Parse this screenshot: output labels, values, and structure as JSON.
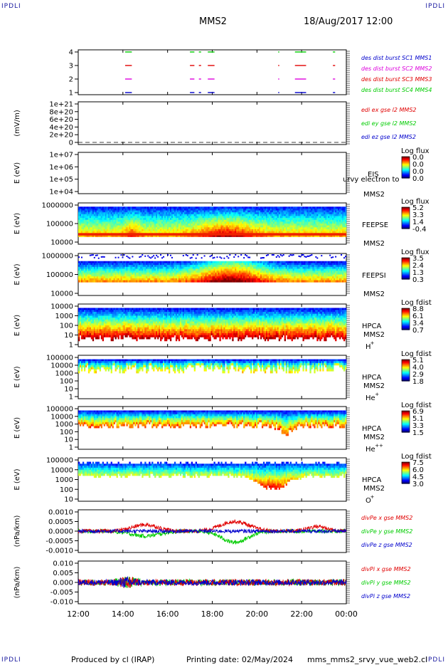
{
  "corner_label": "IPDLI",
  "header": {
    "spacecraft": "MMS2",
    "date_time": "18/Aug/2017 12:00"
  },
  "footer": {
    "produced_by": "Produced by cl (IRAP)",
    "printing_date": "Printing date: 02/May/2024",
    "filename": "mms_mms2_srvy_vue_web2.cl"
  },
  "colors": {
    "red": "#e00000",
    "green": "#00cc00",
    "blue": "#0000cc",
    "magenta": "#dd00dd"
  },
  "chart_data": {
    "type": "stacked-panels",
    "x_axis": {
      "ticks": [
        "12:00",
        "14:00",
        "16:00",
        "18:00",
        "20:00",
        "22:00",
        "00:00"
      ],
      "range": [
        "12:00",
        "00:00"
      ]
    },
    "panels": [
      {
        "id": "burst",
        "type": "timeline",
        "ylim": [
          0.5,
          4.5
        ],
        "yticks": [
          "4",
          "3",
          "2",
          "1"
        ],
        "legend": [
          {
            "text": "des dist burst SC1 MMS1",
            "color": "#0000cc"
          },
          {
            "text": "des dist burst SC2 MMS2",
            "color": "#dd00dd"
          },
          {
            "text": "des dist burst SC3 MMS3",
            "color": "#e00000"
          },
          {
            "text": "des dist burst SC4 MMS4",
            "color": "#00cc00"
          }
        ],
        "intervals_hours": [
          [
            14.1,
            14.4
          ],
          [
            17.0,
            17.2
          ],
          [
            17.4,
            17.5
          ],
          [
            17.8,
            18.1
          ],
          [
            20.95,
            21.0
          ],
          [
            21.7,
            22.2
          ],
          [
            23.4,
            23.5
          ]
        ]
      },
      {
        "id": "edi",
        "type": "line",
        "ylabel": "(mV/m)",
        "yticks": [
          "1e+21",
          "8e+20",
          "6e+20",
          "4e+20",
          "2e+20",
          "0"
        ],
        "legend": [
          {
            "text": "edi ex gse l2 MMS2",
            "color": "#e00000"
          },
          {
            "text": "edi ey gse l2 MMS2",
            "color": "#00cc00"
          },
          {
            "text": "edi ez gse l2 MMS2",
            "color": "#0000cc"
          }
        ]
      },
      {
        "id": "eis",
        "type": "heatmap",
        "ylabel": "E (eV)",
        "yticks": [
          "1e+07",
          "1e+06",
          "1e+05",
          "1e+04"
        ],
        "instrument": "EIS",
        "extra_label": "urvy electron to",
        "spacecraft": "MMS2",
        "cbar_title": "Log flux",
        "cbar_ticks": [
          "0.0",
          "0.0",
          "0.0",
          "0.0"
        ]
      },
      {
        "id": "feepse",
        "type": "heatmap",
        "ylabel": "E (eV)",
        "yticks": [
          "1000000",
          "100000",
          "10000"
        ],
        "instrument": "FEEPSE",
        "spacecraft": "MMS2",
        "cbar_title": "Log flux",
        "cbar_ticks": [
          "5.2",
          "3.3",
          "1.4",
          "-0.4"
        ]
      },
      {
        "id": "feepsi",
        "type": "heatmap",
        "ylabel": "E (eV)",
        "yticks": [
          "1000000",
          "100000",
          "10000"
        ],
        "instrument": "FEEPSI",
        "spacecraft": "MMS2",
        "cbar_title": "Log flux",
        "cbar_ticks": [
          "3.5",
          "2.4",
          "1.3",
          "0.3"
        ]
      },
      {
        "id": "hpca_h",
        "type": "heatmap",
        "ylabel": "E (eV)",
        "yticks": [
          "10000",
          "1000",
          "100",
          "10",
          "1"
        ],
        "instrument": "HPCA",
        "spacecraft": "MMS2",
        "species": "H",
        "species_charge": "+",
        "cbar_title": "Log fdist",
        "cbar_ticks": [
          "8.8",
          "6.1",
          "3.4",
          "0.7"
        ]
      },
      {
        "id": "hpca_he",
        "type": "heatmap",
        "ylabel": "E (eV)",
        "yticks": [
          "100000",
          "10000",
          "1000",
          "100",
          "10",
          "1"
        ],
        "instrument": "HPCA",
        "spacecraft": "MMS2",
        "species": "He",
        "species_charge": "+",
        "cbar_title": "Log fdist",
        "cbar_ticks": [
          "5.1",
          "4.0",
          "2.9",
          "1.8"
        ]
      },
      {
        "id": "hpca_hepp",
        "type": "heatmap",
        "ylabel": "E (eV)",
        "yticks": [
          "100000",
          "10000",
          "1000",
          "100",
          "10",
          "1"
        ],
        "instrument": "HPCA",
        "spacecraft": "MMS2",
        "species": "He",
        "species_charge": "++",
        "cbar_title": "Log fdist",
        "cbar_ticks": [
          "6.9",
          "5.1",
          "3.3",
          "1.5"
        ]
      },
      {
        "id": "hpca_o",
        "type": "heatmap",
        "ylabel": "E (eV)",
        "yticks": [
          "100000",
          "10000",
          "1000",
          "100",
          "10"
        ],
        "instrument": "HPCA",
        "spacecraft": "MMS2",
        "species": "O",
        "species_charge": "+",
        "cbar_title": "Log fdist",
        "cbar_ticks": [
          "7.5",
          "6.0",
          "4.5",
          "3.0"
        ]
      },
      {
        "id": "divpe",
        "type": "line",
        "ylabel": "(nPa/km)",
        "ylim": [
          -0.012,
          0.012
        ],
        "yticks": [
          "0.0010",
          "0.0005",
          "0.0000",
          "-0.0005",
          "-0.0010"
        ],
        "legend": [
          {
            "text": "divPe x gse MMS2",
            "color": "#e00000"
          },
          {
            "text": "divPe y gse MMS2",
            "color": "#00cc00"
          },
          {
            "text": "divPe z gse MMS2",
            "color": "#0000cc"
          }
        ]
      },
      {
        "id": "divpi",
        "type": "line",
        "ylabel": "(nPa/km)",
        "ylim": [
          -0.012,
          0.012
        ],
        "yticks": [
          "0.010",
          "0.005",
          "0.000",
          "-0.005",
          "-0.010"
        ],
        "legend": [
          {
            "text": "divPi x gse MMS2",
            "color": "#e00000"
          },
          {
            "text": "divPi y gse MMS2",
            "color": "#00cc00"
          },
          {
            "text": "divPi z gse MMS2",
            "color": "#0000cc"
          }
        ]
      }
    ]
  }
}
